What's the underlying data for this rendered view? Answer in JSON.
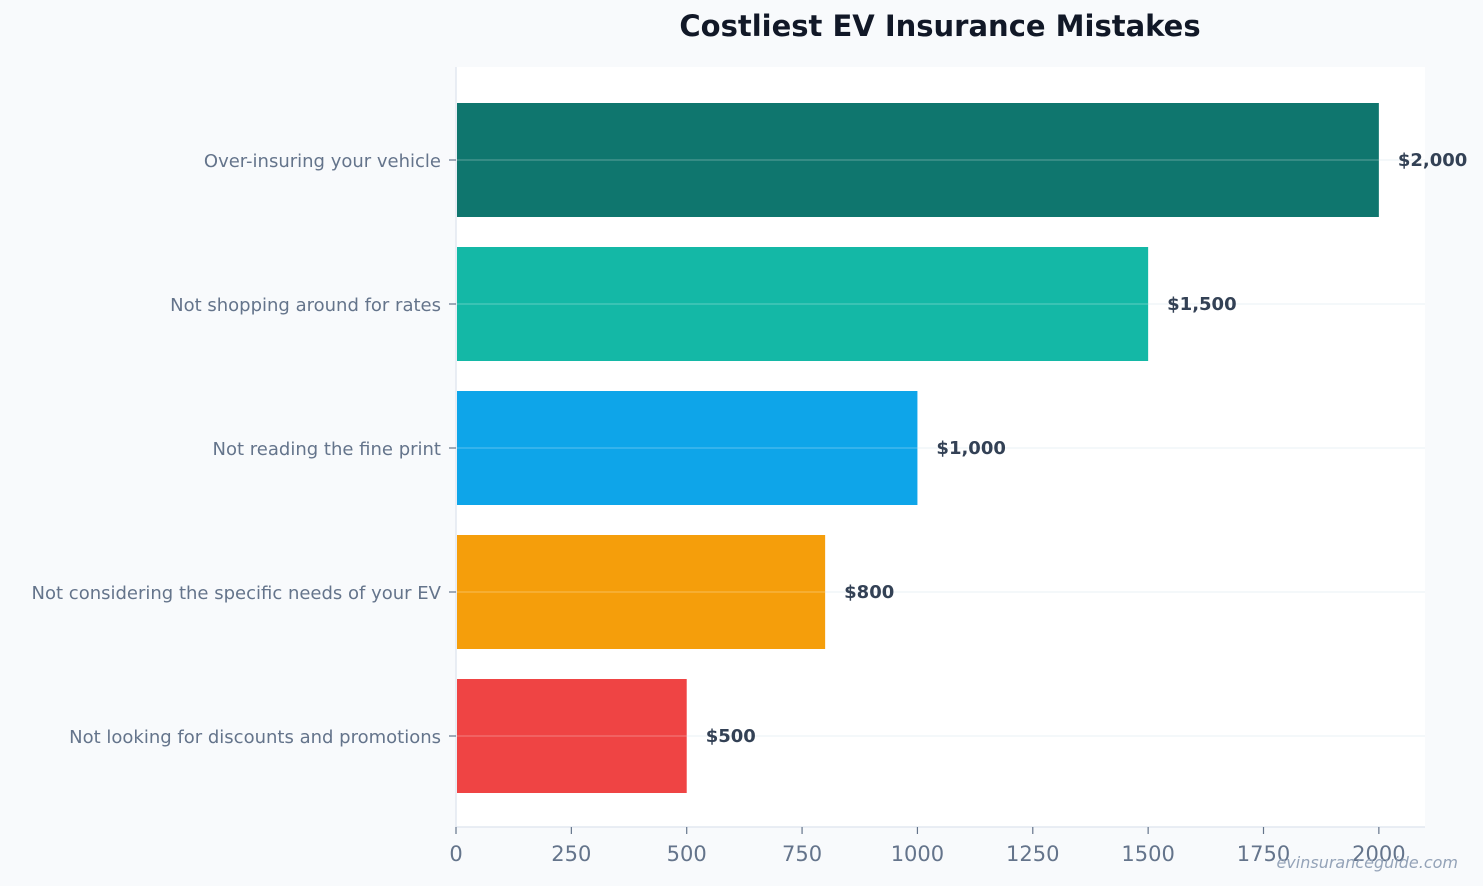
{
  "chart_data": {
    "type": "bar",
    "orientation": "horizontal",
    "title": "Costliest EV Insurance Mistakes",
    "xlabel": "",
    "ylabel": "",
    "categories": [
      "Over-insuring your vehicle",
      "Not shopping around for rates",
      "Not reading the fine print",
      "Not considering the specific needs of your EV",
      "Not looking for discounts and promotions"
    ],
    "values": [
      2000,
      1500,
      1000,
      800,
      500
    ],
    "value_labels": [
      "$2,000",
      "$1,500",
      "$1,000",
      "$800",
      "$500"
    ],
    "colors": [
      "#0f766e",
      "#14b8a6",
      "#0ea5e9",
      "#f59e0b",
      "#ef4444"
    ],
    "xlim": [
      0,
      2100
    ],
    "xticks": [
      0,
      250,
      500,
      750,
      1000,
      1250,
      1500,
      1750,
      2000
    ],
    "grid": true,
    "legend": "none"
  },
  "watermark": "evinsuranceguide.com"
}
